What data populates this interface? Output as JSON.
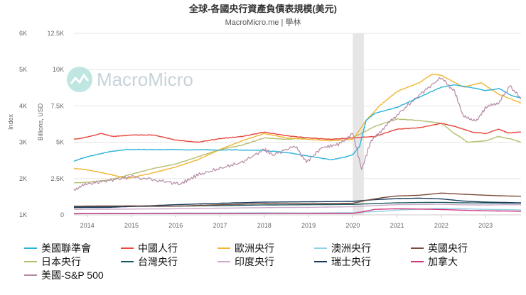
{
  "chart_data": {
    "type": "line",
    "title": "全球-各國央行資產負債表規模(美元)",
    "subtitle": "MacroMicro.me | 學林",
    "watermark": "MacroMicro",
    "left_axis_label": "Index",
    "right_axis_label": "Billions, USD",
    "index_axis": {
      "ticks": [
        "1K",
        "2K",
        "3K",
        "4K",
        "5K",
        "6K"
      ],
      "range": [
        1000,
        6000
      ]
    },
    "usd_axis": {
      "ticks": [
        "0",
        "2.5K",
        "5K",
        "7.5K",
        "10K",
        "12.5K"
      ],
      "range": [
        0,
        12500
      ]
    },
    "x_ticks": [
      "2014",
      "2015",
      "2016",
      "2017",
      "2018",
      "2019",
      "2020",
      "2021",
      "2022",
      "2023"
    ],
    "x_range": [
      2013.7,
      2023.8
    ],
    "recession_band": [
      2020.0,
      2020.25
    ],
    "series": [
      {
        "name": "美國聯準會",
        "color": "#2bb3d8",
        "axis": "usd",
        "x": [
          2013.7,
          2014.0,
          2014.5,
          2014.9,
          2015.5,
          2016.5,
          2017.5,
          2017.9,
          2018.5,
          2019.0,
          2019.5,
          2019.8,
          2020.0,
          2020.15,
          2020.3,
          2020.5,
          2021.0,
          2021.5,
          2022.0,
          2022.3,
          2022.8,
          2023.0,
          2023.3,
          2023.6,
          2023.8
        ],
        "values": [
          3700,
          4000,
          4350,
          4500,
          4500,
          4480,
          4460,
          4450,
          4300,
          4050,
          3800,
          3950,
          4150,
          4700,
          6500,
          7000,
          7400,
          8100,
          8800,
          8950,
          8700,
          8550,
          8700,
          8200,
          8050
        ]
      },
      {
        "name": "中國人行",
        "color": "#e8453c",
        "axis": "usd",
        "x": [
          2013.7,
          2014.0,
          2014.3,
          2014.6,
          2015.0,
          2015.5,
          2016.0,
          2016.5,
          2017.0,
          2017.5,
          2018.0,
          2018.5,
          2019.0,
          2019.5,
          2020.0,
          2020.5,
          2021.0,
          2021.5,
          2022.0,
          2022.3,
          2022.7,
          2023.0,
          2023.3,
          2023.5,
          2023.8
        ],
        "values": [
          5200,
          5350,
          5600,
          5400,
          5500,
          5500,
          5150,
          5000,
          5250,
          5400,
          5700,
          5450,
          5300,
          5200,
          5300,
          5400,
          5900,
          6000,
          6300,
          6100,
          5700,
          5600,
          5900,
          5650,
          5700
        ]
      },
      {
        "name": "歐洲央行",
        "color": "#f2b632",
        "axis": "usd",
        "x": [
          2013.7,
          2014.0,
          2014.5,
          2014.9,
          2015.5,
          2016.0,
          2016.5,
          2017.0,
          2017.5,
          2018.0,
          2018.5,
          2019.0,
          2019.5,
          2020.0,
          2020.3,
          2020.6,
          2021.0,
          2021.5,
          2021.8,
          2022.0,
          2022.5,
          2022.9,
          2023.3,
          2023.8
        ],
        "values": [
          3200,
          3100,
          2800,
          2500,
          2900,
          3300,
          3800,
          4500,
          5100,
          5600,
          5300,
          5200,
          5100,
          5200,
          6500,
          7500,
          8500,
          9100,
          9700,
          9600,
          8800,
          9100,
          8300,
          7700
        ]
      },
      {
        "name": "澳洲央行",
        "color": "#8fd3e8",
        "axis": "usd",
        "x": [
          2013.7,
          2015.0,
          2016.0,
          2017.0,
          2018.0,
          2019.0,
          2020.0,
          2020.3,
          2020.7,
          2021.0,
          2021.5,
          2022.0,
          2022.5,
          2023.0,
          2023.5,
          2023.8
        ],
        "values": [
          100,
          110,
          120,
          130,
          140,
          130,
          150,
          200,
          250,
          330,
          390,
          450,
          420,
          380,
          360,
          340
        ]
      },
      {
        "name": "英國央行",
        "color": "#7b4a3a",
        "axis": "usd",
        "x": [
          2013.7,
          2015.0,
          2016.0,
          2017.0,
          2018.0,
          2019.0,
          2020.0,
          2020.3,
          2020.7,
          2021.0,
          2021.5,
          2022.0,
          2022.5,
          2023.0,
          2023.5,
          2023.8
        ],
        "values": [
          600,
          620,
          600,
          700,
          780,
          770,
          800,
          1000,
          1200,
          1300,
          1350,
          1500,
          1420,
          1350,
          1300,
          1280
        ]
      },
      {
        "name": "日本央行",
        "color": "#b5bd6e",
        "axis": "usd",
        "x": [
          2013.7,
          2014.0,
          2014.5,
          2015.0,
          2015.5,
          2016.0,
          2016.5,
          2017.0,
          2017.5,
          2018.0,
          2018.5,
          2019.0,
          2019.5,
          2020.0,
          2020.5,
          2021.0,
          2021.5,
          2022.0,
          2022.3,
          2022.6,
          2023.0,
          2023.3,
          2023.6,
          2023.8
        ],
        "values": [
          2200,
          2250,
          2400,
          2800,
          3200,
          3500,
          4000,
          4500,
          4800,
          5300,
          5200,
          5300,
          5200,
          5300,
          6100,
          6600,
          6500,
          6300,
          5600,
          5000,
          5100,
          5400,
          5200,
          5000
        ]
      },
      {
        "name": "台灣央行",
        "color": "#1d5a5e",
        "axis": "usd",
        "x": [
          2013.7,
          2015.0,
          2016.0,
          2017.0,
          2018.0,
          2019.0,
          2020.0,
          2020.5,
          2021.0,
          2021.5,
          2022.0,
          2022.5,
          2023.0,
          2023.5,
          2023.8
        ],
        "values": [
          550,
          580,
          600,
          640,
          680,
          700,
          720,
          780,
          830,
          850,
          860,
          830,
          820,
          810,
          810
        ]
      },
      {
        "name": "印度央行",
        "color": "#c9a9c9",
        "axis": "usd",
        "x": [
          2013.7,
          2015.0,
          2016.0,
          2017.0,
          2018.0,
          2019.0,
          2020.0,
          2020.5,
          2021.0,
          2022.0,
          2022.5,
          2023.0,
          2023.5,
          2023.8
        ],
        "values": [
          380,
          400,
          420,
          460,
          500,
          520,
          560,
          640,
          700,
          730,
          690,
          680,
          700,
          700
        ]
      },
      {
        "name": "瑞士央行",
        "color": "#163a5c",
        "axis": "usd",
        "x": [
          2013.7,
          2014.5,
          2015.0,
          2016.0,
          2017.0,
          2018.0,
          2019.0,
          2020.0,
          2020.5,
          2021.0,
          2021.5,
          2022.0,
          2022.5,
          2023.0,
          2023.5,
          2023.8
        ],
        "values": [
          500,
          520,
          580,
          700,
          800,
          880,
          900,
          930,
          1050,
          1120,
          1150,
          1100,
          950,
          880,
          850,
          830
        ]
      },
      {
        "name": "加拿大",
        "color": "#d1357a",
        "axis": "usd",
        "x": [
          2013.7,
          2015.0,
          2016.0,
          2017.0,
          2018.0,
          2019.0,
          2020.0,
          2020.2,
          2020.5,
          2021.0,
          2021.5,
          2022.0,
          2022.5,
          2023.0,
          2023.5,
          2023.8
        ],
        "values": [
          80,
          85,
          90,
          90,
          90,
          95,
          100,
          200,
          380,
          420,
          400,
          370,
          320,
          280,
          260,
          250
        ]
      },
      {
        "name": "美國-S&P 500",
        "color": "#b58aa6",
        "axis": "index",
        "x": [
          2013.7,
          2014.0,
          2014.5,
          2015.0,
          2015.6,
          2016.1,
          2016.5,
          2017.0,
          2017.5,
          2018.0,
          2018.2,
          2018.7,
          2018.95,
          2019.3,
          2019.7,
          2020.0,
          2020.2,
          2020.4,
          2020.7,
          2021.0,
          2021.5,
          2021.99,
          2022.3,
          2022.5,
          2022.8,
          2023.0,
          2023.3,
          2023.55,
          2023.8
        ],
        "values": [
          1700,
          1850,
          1950,
          2050,
          1950,
          1850,
          2100,
          2280,
          2450,
          2800,
          2650,
          2900,
          2450,
          2850,
          2950,
          3250,
          2250,
          3000,
          3400,
          3750,
          4300,
          4780,
          4400,
          3700,
          3600,
          3950,
          4100,
          4550,
          4200
        ]
      }
    ]
  }
}
